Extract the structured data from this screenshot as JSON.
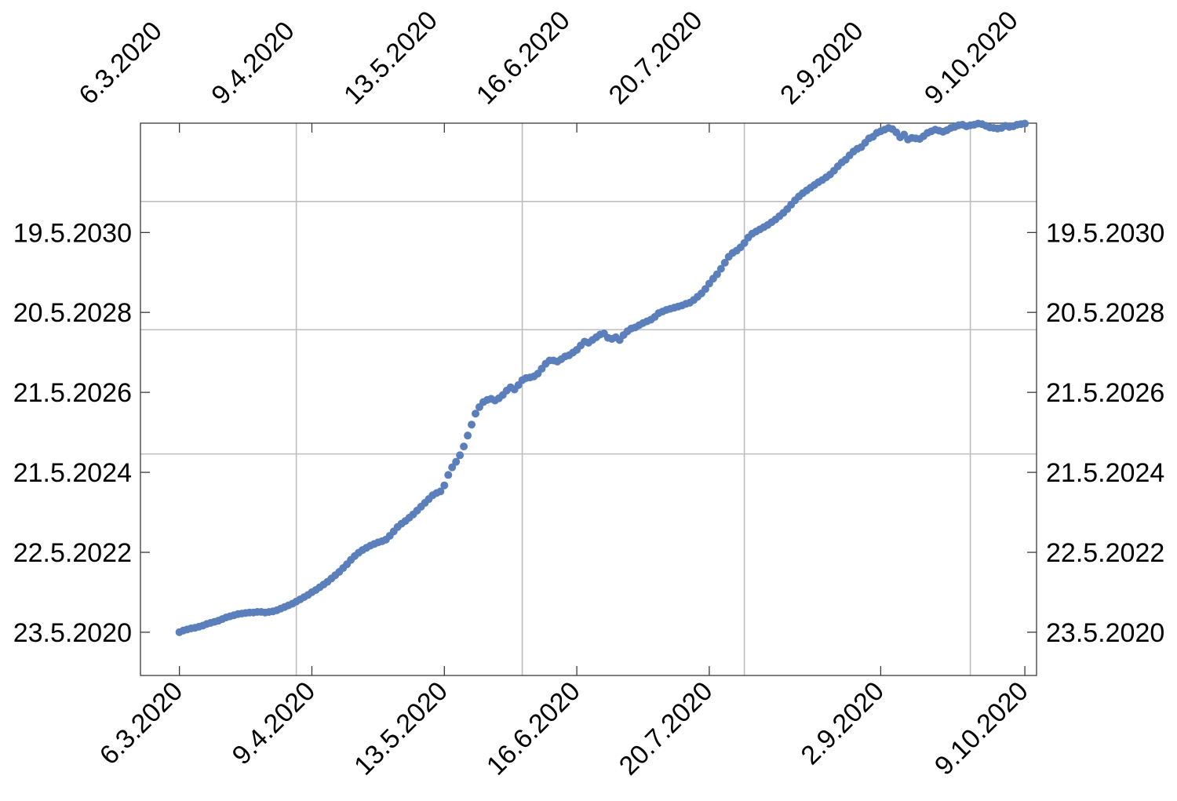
{
  "chart_data": {
    "type": "scatter",
    "title": "",
    "xlabel": "",
    "ylabel": "",
    "x_ticks": [
      {
        "date": "2020-03-06",
        "label": "6.3.2020"
      },
      {
        "date": "2020-04-09",
        "label": "9.4.2020"
      },
      {
        "date": "2020-05-13",
        "label": "13.5.2020"
      },
      {
        "date": "2020-06-16",
        "label": "16.6.2020"
      },
      {
        "date": "2020-07-20",
        "label": "20.7.2020"
      },
      {
        "date": "2020-09-02",
        "label": "2.9.2020"
      },
      {
        "date": "2020-10-09",
        "label": "9.10.2020"
      }
    ],
    "x_ticks_top": true,
    "y_ticks": [
      {
        "date": "2020-05-23",
        "label": "23.5.2020"
      },
      {
        "date": "2022-05-22",
        "label": "22.5.2022"
      },
      {
        "date": "2024-05-21",
        "label": "21.5.2024"
      },
      {
        "date": "2026-05-21",
        "label": "21.5.2026"
      },
      {
        "date": "2028-05-20",
        "label": "20.5.2028"
      },
      {
        "date": "2030-05-19",
        "label": "19.5.2030"
      }
    ],
    "y_ticks_right": true,
    "xlim": [
      "2020-02-25",
      "2020-10-12"
    ],
    "ylim": [
      "2019-04-24",
      "2033-02-10"
    ],
    "grid_x": [
      "2020-04-05",
      "2020-06-02",
      "2020-07-29",
      "2020-09-25"
    ],
    "grid_y": [
      "2024-11-05",
      "2027-12-14",
      "2031-02-26"
    ],
    "grid": true,
    "legend": "none",
    "marker_color": "#5b7fba",
    "series": [
      {
        "points": [
          [
            "2020-03-06",
            "2020-05-23"
          ],
          [
            "2020-03-07",
            "2020-06-07"
          ],
          [
            "2020-03-08",
            "2020-06-17"
          ],
          [
            "2020-03-09",
            "2020-06-27"
          ],
          [
            "2020-03-10",
            "2020-07-02"
          ],
          [
            "2020-03-11",
            "2020-07-12"
          ],
          [
            "2020-03-12",
            "2020-07-22"
          ],
          [
            "2020-03-13",
            "2020-08-06"
          ],
          [
            "2020-03-14",
            "2020-08-16"
          ],
          [
            "2020-03-15",
            "2020-08-26"
          ],
          [
            "2020-03-16",
            "2020-09-05"
          ],
          [
            "2020-03-17",
            "2020-09-20"
          ],
          [
            "2020-03-18",
            "2020-10-05"
          ],
          [
            "2020-03-19",
            "2020-10-15"
          ],
          [
            "2020-03-20",
            "2020-10-25"
          ],
          [
            "2020-03-21",
            "2020-11-04"
          ],
          [
            "2020-03-22",
            "2020-11-09"
          ],
          [
            "2020-03-23",
            "2020-11-14"
          ],
          [
            "2020-03-24",
            "2020-11-19"
          ],
          [
            "2020-03-25",
            "2020-11-19"
          ],
          [
            "2020-03-26",
            "2020-11-24"
          ],
          [
            "2020-03-27",
            "2020-11-24"
          ],
          [
            "2020-03-28",
            "2020-11-19"
          ],
          [
            "2020-03-29",
            "2020-11-24"
          ],
          [
            "2020-03-30",
            "2020-11-29"
          ],
          [
            "2020-03-31",
            "2020-12-09"
          ],
          [
            "2020-04-01",
            "2020-12-24"
          ],
          [
            "2020-04-02",
            "2021-01-08"
          ],
          [
            "2020-04-03",
            "2021-01-23"
          ],
          [
            "2020-04-04",
            "2021-02-07"
          ],
          [
            "2020-04-05",
            "2021-02-27"
          ],
          [
            "2020-04-06",
            "2021-03-19"
          ],
          [
            "2020-04-07",
            "2021-04-08"
          ],
          [
            "2020-04-08",
            "2021-04-28"
          ],
          [
            "2020-04-09",
            "2021-05-23"
          ],
          [
            "2020-04-10",
            "2021-06-12"
          ],
          [
            "2020-04-11",
            "2021-07-07"
          ],
          [
            "2020-04-12",
            "2021-08-01"
          ],
          [
            "2020-04-13",
            "2021-08-26"
          ],
          [
            "2020-04-14",
            "2021-09-25"
          ],
          [
            "2020-04-15",
            "2021-10-25"
          ],
          [
            "2020-04-16",
            "2021-11-24"
          ],
          [
            "2020-04-17",
            "2021-12-29"
          ],
          [
            "2020-04-18",
            "2022-02-02"
          ],
          [
            "2020-04-19",
            "2022-03-14"
          ],
          [
            "2020-04-20",
            "2022-04-18"
          ],
          [
            "2020-04-21",
            "2022-05-18"
          ],
          [
            "2020-04-22",
            "2022-06-12"
          ],
          [
            "2020-04-23",
            "2022-07-02"
          ],
          [
            "2020-04-24",
            "2022-07-22"
          ],
          [
            "2020-04-25",
            "2022-08-06"
          ],
          [
            "2020-04-26",
            "2022-08-21"
          ],
          [
            "2020-04-27",
            "2022-08-31"
          ],
          [
            "2020-04-28",
            "2022-09-15"
          ],
          [
            "2020-04-29",
            "2022-10-20"
          ],
          [
            "2020-04-30",
            "2022-11-29"
          ],
          [
            "2020-05-01",
            "2023-01-08"
          ],
          [
            "2020-05-02",
            "2023-02-07"
          ],
          [
            "2020-05-03",
            "2023-03-04"
          ],
          [
            "2020-05-04",
            "2023-04-03"
          ],
          [
            "2020-05-05",
            "2023-05-03"
          ],
          [
            "2020-05-06",
            "2023-06-07"
          ],
          [
            "2020-05-07",
            "2023-07-12"
          ],
          [
            "2020-05-08",
            "2023-08-16"
          ],
          [
            "2020-05-09",
            "2023-09-20"
          ],
          [
            "2020-05-10",
            "2023-10-25"
          ],
          [
            "2020-05-11",
            "2023-11-14"
          ],
          [
            "2020-05-12",
            "2023-11-29"
          ],
          [
            "2020-05-13",
            "2024-01-23"
          ],
          [
            "2020-05-14",
            "2024-04-27"
          ],
          [
            "2020-05-15",
            "2024-07-06"
          ],
          [
            "2020-05-16",
            "2024-08-25"
          ],
          [
            "2020-05-17",
            "2024-10-24"
          ],
          [
            "2020-05-18",
            "2025-01-12"
          ],
          [
            "2020-05-19",
            "2025-04-22"
          ],
          [
            "2020-05-20",
            "2025-07-31"
          ],
          [
            "2020-05-21",
            "2025-11-08"
          ],
          [
            "2020-05-22",
            "2026-01-07"
          ],
          [
            "2020-05-23",
            "2026-02-21"
          ],
          [
            "2020-05-24",
            "2026-03-13"
          ],
          [
            "2020-05-25",
            "2026-03-23"
          ],
          [
            "2020-05-26",
            "2026-03-08"
          ],
          [
            "2020-05-27",
            "2026-03-28"
          ],
          [
            "2020-05-28",
            "2026-04-27"
          ],
          [
            "2020-05-29",
            "2026-06-06"
          ],
          [
            "2020-05-30",
            "2026-07-06"
          ],
          [
            "2020-05-31",
            "2026-06-16"
          ],
          [
            "2020-06-01",
            "2026-07-26"
          ],
          [
            "2020-06-02",
            "2026-09-09"
          ],
          [
            "2020-06-03",
            "2026-09-29"
          ],
          [
            "2020-06-04",
            "2026-10-04"
          ],
          [
            "2020-06-05",
            "2026-10-14"
          ],
          [
            "2020-06-06",
            "2026-11-08"
          ],
          [
            "2020-06-07",
            "2026-12-23"
          ],
          [
            "2020-06-08",
            "2027-02-06"
          ],
          [
            "2020-06-09",
            "2027-03-08"
          ],
          [
            "2020-06-10",
            "2027-03-08"
          ],
          [
            "2020-06-11",
            "2027-02-26"
          ],
          [
            "2020-06-12",
            "2027-03-20"
          ],
          [
            "2020-06-13",
            "2027-04-14"
          ],
          [
            "2020-06-14",
            "2027-04-24"
          ],
          [
            "2020-06-15",
            "2027-05-19"
          ],
          [
            "2020-06-16",
            "2027-06-13"
          ],
          [
            "2020-06-17",
            "2027-07-23"
          ],
          [
            "2020-06-18",
            "2027-08-27"
          ],
          [
            "2020-06-19",
            "2027-08-17"
          ],
          [
            "2020-06-20",
            "2027-09-11"
          ],
          [
            "2020-06-21",
            "2027-10-06"
          ],
          [
            "2020-06-22",
            "2027-10-31"
          ],
          [
            "2020-06-23",
            "2027-11-10"
          ],
          [
            "2020-06-24",
            "2027-10-01"
          ],
          [
            "2020-06-25",
            "2027-09-21"
          ],
          [
            "2020-06-26",
            "2027-10-06"
          ],
          [
            "2020-06-27",
            "2027-09-11"
          ],
          [
            "2020-06-28",
            "2027-10-26"
          ],
          [
            "2020-06-29",
            "2027-11-30"
          ],
          [
            "2020-06-30",
            "2027-12-25"
          ],
          [
            "2020-07-01",
            "2028-01-04"
          ],
          [
            "2020-07-02",
            "2028-01-24"
          ],
          [
            "2020-07-03",
            "2028-02-13"
          ],
          [
            "2020-07-04",
            "2028-02-28"
          ],
          [
            "2020-07-05",
            "2028-03-14"
          ],
          [
            "2020-07-06",
            "2028-04-08"
          ],
          [
            "2020-07-07",
            "2028-05-13"
          ],
          [
            "2020-07-08",
            "2028-05-28"
          ],
          [
            "2020-07-09",
            "2028-06-12"
          ],
          [
            "2020-07-10",
            "2028-06-22"
          ],
          [
            "2020-07-11",
            "2028-07-02"
          ],
          [
            "2020-07-12",
            "2028-07-12"
          ],
          [
            "2020-07-13",
            "2028-07-22"
          ],
          [
            "2020-07-14",
            "2028-08-06"
          ],
          [
            "2020-07-15",
            "2028-08-16"
          ],
          [
            "2020-07-16",
            "2028-09-10"
          ],
          [
            "2020-07-17",
            "2028-10-10"
          ],
          [
            "2020-07-18",
            "2028-11-09"
          ],
          [
            "2020-07-19",
            "2028-12-19"
          ],
          [
            "2020-07-20",
            "2029-02-07"
          ],
          [
            "2020-07-21",
            "2029-03-24"
          ],
          [
            "2020-07-22",
            "2029-05-03"
          ],
          [
            "2020-07-23",
            "2029-06-22"
          ],
          [
            "2020-07-24",
            "2029-08-16"
          ],
          [
            "2020-07-25",
            "2029-10-10"
          ],
          [
            "2020-07-26",
            "2029-11-14"
          ],
          [
            "2020-07-27",
            "2029-12-04"
          ],
          [
            "2020-07-28",
            "2030-01-03"
          ],
          [
            "2020-07-29",
            "2030-02-12"
          ],
          [
            "2020-07-30",
            "2030-04-03"
          ],
          [
            "2020-07-31",
            "2030-05-08"
          ],
          [
            "2020-08-01",
            "2030-05-28"
          ],
          [
            "2020-08-02",
            "2030-06-17"
          ],
          [
            "2020-08-03",
            "2030-07-07"
          ],
          [
            "2020-08-04",
            "2030-07-27"
          ],
          [
            "2020-08-05",
            "2030-08-21"
          ],
          [
            "2020-08-06",
            "2030-09-15"
          ],
          [
            "2020-08-07",
            "2030-10-15"
          ],
          [
            "2020-08-08",
            "2030-11-14"
          ],
          [
            "2020-08-09",
            "2030-12-19"
          ],
          [
            "2020-08-10",
            "2031-01-28"
          ],
          [
            "2020-08-11",
            "2031-03-09"
          ],
          [
            "2020-08-12",
            "2031-04-13"
          ],
          [
            "2020-08-13",
            "2031-05-13"
          ],
          [
            "2020-08-14",
            "2031-06-07"
          ],
          [
            "2020-08-15",
            "2031-07-02"
          ],
          [
            "2020-08-16",
            "2031-07-27"
          ],
          [
            "2020-08-17",
            "2031-08-21"
          ],
          [
            "2020-08-18",
            "2031-09-10"
          ],
          [
            "2020-08-19",
            "2031-10-05"
          ],
          [
            "2020-08-20",
            "2031-10-30"
          ],
          [
            "2020-08-21",
            "2031-12-04"
          ],
          [
            "2020-08-22",
            "2032-01-13"
          ],
          [
            "2020-08-23",
            "2032-02-17"
          ],
          [
            "2020-08-24",
            "2032-03-13"
          ],
          [
            "2020-08-25",
            "2032-04-22"
          ],
          [
            "2020-08-26",
            "2032-05-27"
          ],
          [
            "2020-08-27",
            "2032-06-21"
          ],
          [
            "2020-08-28",
            "2032-07-06"
          ],
          [
            "2020-08-29",
            "2032-08-15"
          ],
          [
            "2020-08-30",
            "2032-09-24"
          ],
          [
            "2020-08-31",
            "2032-10-09"
          ],
          [
            "2020-09-01",
            "2032-11-13"
          ],
          [
            "2020-09-02",
            "2032-11-28"
          ],
          [
            "2020-09-03",
            "2032-12-13"
          ],
          [
            "2020-09-04",
            "2032-12-28"
          ],
          [
            "2020-09-05",
            "2032-12-18"
          ],
          [
            "2020-09-06",
            "2032-11-18"
          ],
          [
            "2020-09-07",
            "2032-10-04"
          ],
          [
            "2020-09-08",
            "2032-10-29"
          ],
          [
            "2020-09-09",
            "2032-09-14"
          ],
          [
            "2020-09-10",
            "2032-09-29"
          ],
          [
            "2020-09-11",
            "2032-09-24"
          ],
          [
            "2020-09-12",
            "2032-09-19"
          ],
          [
            "2020-09-13",
            "2032-10-14"
          ],
          [
            "2020-09-14",
            "2032-11-13"
          ],
          [
            "2020-09-15",
            "2032-11-28"
          ],
          [
            "2020-09-16",
            "2032-12-13"
          ],
          [
            "2020-09-17",
            "2032-12-03"
          ],
          [
            "2020-09-18",
            "2032-11-23"
          ],
          [
            "2020-09-19",
            "2032-12-08"
          ],
          [
            "2020-09-20",
            "2032-12-28"
          ],
          [
            "2020-09-21",
            "2033-01-07"
          ],
          [
            "2020-09-22",
            "2033-01-22"
          ],
          [
            "2020-09-23",
            "2033-01-27"
          ],
          [
            "2020-09-24",
            "2033-01-12"
          ],
          [
            "2020-09-25",
            "2033-01-22"
          ],
          [
            "2020-09-26",
            "2033-01-27"
          ],
          [
            "2020-09-27",
            "2033-02-06"
          ],
          [
            "2020-09-28",
            "2033-02-01"
          ],
          [
            "2020-09-29",
            "2033-01-17"
          ],
          [
            "2020-09-30",
            "2033-01-02"
          ],
          [
            "2020-10-01",
            "2032-12-28"
          ],
          [
            "2020-10-02",
            "2032-12-23"
          ],
          [
            "2020-10-03",
            "2032-12-28"
          ],
          [
            "2020-10-04",
            "2033-01-17"
          ],
          [
            "2020-10-05",
            "2033-01-07"
          ],
          [
            "2020-10-06",
            "2033-01-12"
          ],
          [
            "2020-10-07",
            "2033-01-27"
          ],
          [
            "2020-10-08",
            "2033-02-01"
          ],
          [
            "2020-10-09",
            "2033-02-06"
          ]
        ]
      }
    ]
  }
}
